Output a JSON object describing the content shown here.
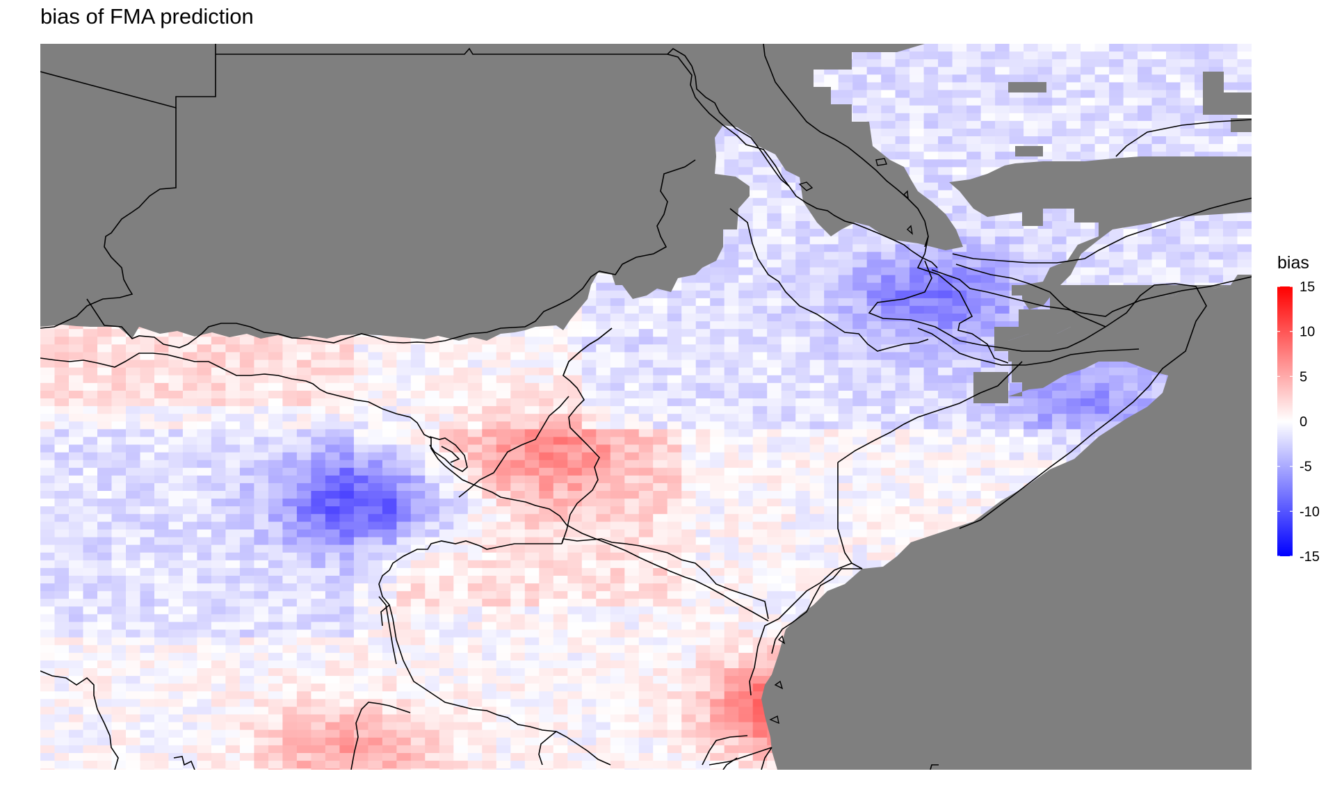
{
  "title": "bias of FMA prediction",
  "chart_data": {
    "type": "heatmap",
    "title": "bias of FMA prediction",
    "fill_variable": "bias",
    "color_scale": {
      "low": "#0000ff",
      "mid": "#ffffff",
      "high": "#ff0000",
      "limits": [
        -15,
        15
      ]
    },
    "missing_color": "#7f7f7f",
    "legend": {
      "title": "bias",
      "position": "right",
      "breaks": [
        15,
        10,
        5,
        0,
        -5,
        -10,
        -15
      ],
      "labels": [
        "15",
        "10",
        "5",
        "0",
        "-5",
        "-10",
        "-15"
      ]
    },
    "grid_step": 0.25,
    "region": "East Africa",
    "lon_range": [
      26.5,
      52.0
    ],
    "lat_range": [
      -11.25,
      17.0
    ],
    "bias_grid_visible": {
      "hotspots": [
        {
          "lon": 42.5,
          "lat": -8.8,
          "bias": 12,
          "label": "positive"
        },
        {
          "lon": 33.5,
          "lat": -0.8,
          "bias": -11,
          "label": "negative"
        },
        {
          "lon": 45.3,
          "lat": 7.2,
          "bias": -7,
          "label": "negative"
        },
        {
          "lon": 37.2,
          "lat": 1.0,
          "bias": 6,
          "label": "positive"
        },
        {
          "lon": 33.0,
          "lat": -10.5,
          "bias": 6,
          "label": "positive"
        },
        {
          "lon": 48.5,
          "lat": 3.2,
          "bias": -5,
          "label": "negative"
        }
      ]
    }
  }
}
